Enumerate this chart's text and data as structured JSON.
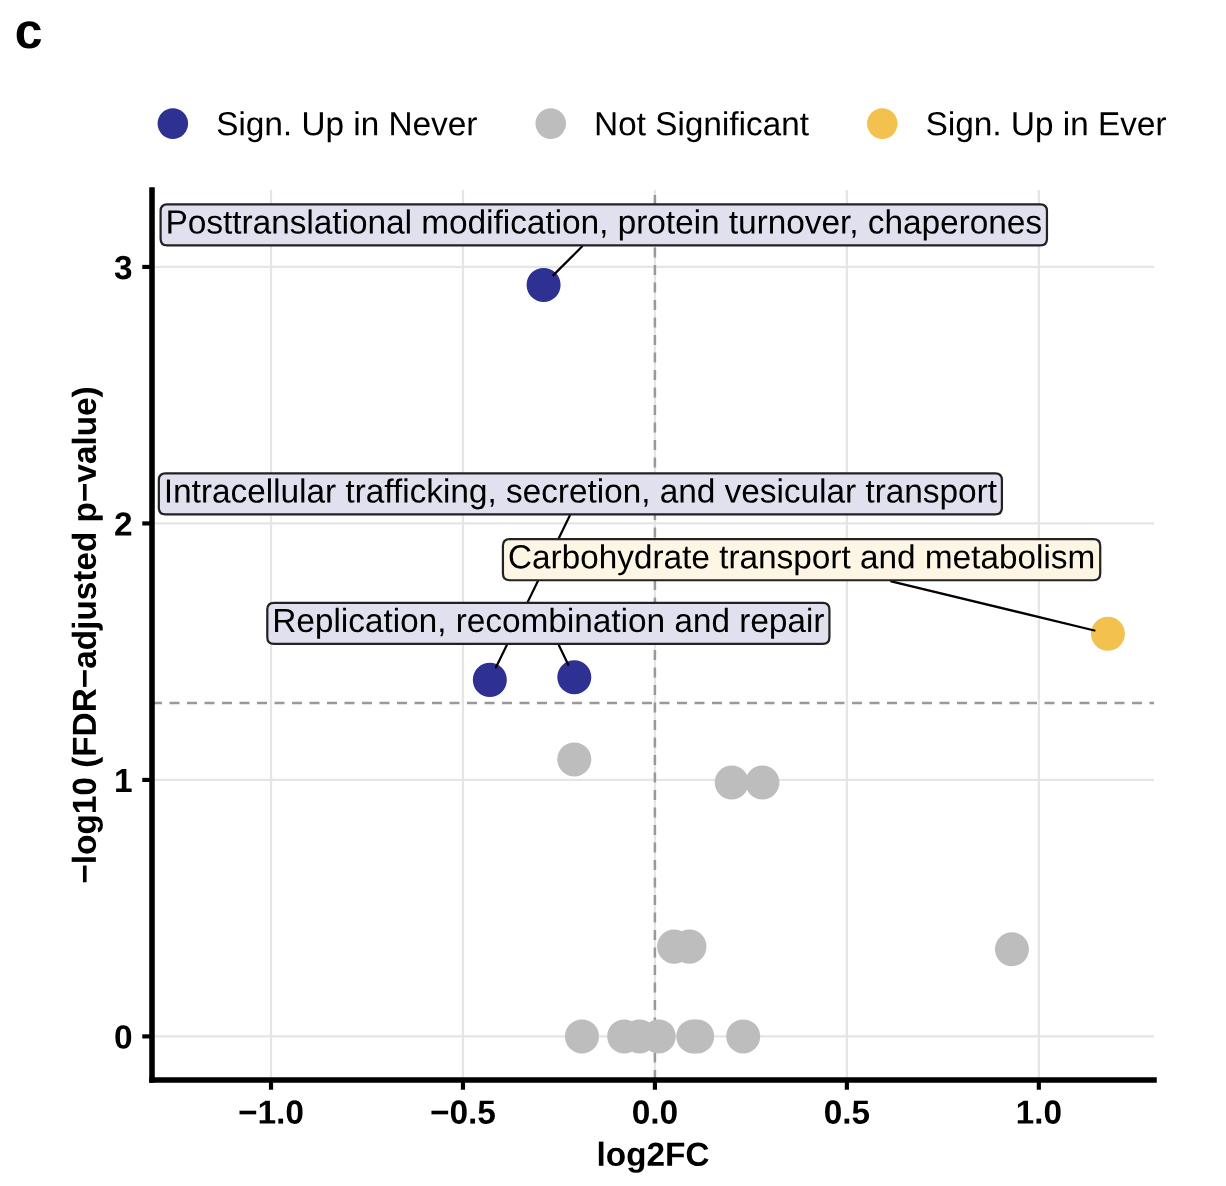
{
  "chart_data": {
    "type": "scatter",
    "xlabel": "log2FC",
    "ylabel": "−log10 (FDR−adjusted p−value)",
    "series": [
      {
        "name": "Sign. Up in Never",
        "color": "#2e3192",
        "x": [
          -0.29,
          -0.43,
          -0.21
        ],
        "values": [
          2.93,
          1.39,
          1.4
        ]
      },
      {
        "name": "Not Significant",
        "color": "#bdbdbd",
        "x": [
          -0.21,
          0.2,
          0.28,
          0.05,
          0.09,
          0.93,
          -0.19,
          -0.08,
          -0.04,
          0.01,
          0.1,
          0.11,
          0.23
        ],
        "values": [
          1.08,
          0.99,
          0.99,
          0.35,
          0.35,
          0.34,
          0,
          0,
          0,
          0,
          0,
          0,
          0
        ]
      },
      {
        "name": "Sign. Up in Ever",
        "color": "#f2c14e",
        "x": [
          1.18
        ],
        "values": [
          1.57
        ]
      }
    ],
    "xlim": [
      -1.31,
      1.3
    ],
    "ylim": [
      -0.17,
      3.3
    ],
    "xticks": [
      {
        "value": -1.0,
        "label": "−1.0"
      },
      {
        "value": -0.5,
        "label": "−0.5"
      },
      {
        "value": 0.0,
        "label": "0.0"
      },
      {
        "value": 0.5,
        "label": "0.5"
      },
      {
        "value": 1.0,
        "label": "1.0"
      }
    ],
    "yticks": [
      0,
      1,
      2,
      3
    ],
    "grid": true,
    "legend": "top",
    "marker": "circle",
    "ref_lines": [
      {
        "axis": "x",
        "value": 0,
        "line_style": "dashed",
        "color": "#999999"
      },
      {
        "axis": "y",
        "value": 1.3,
        "line_style": "dashed",
        "color": "#999999"
      }
    ],
    "annotations": [
      "c",
      {
        "text": "Posttranslational modification, protein turnover, chaperones",
        "x": -0.29,
        "y": 2.93
      },
      {
        "text": "Intracellular trafficking, secretion, and vesicular transport",
        "x": -0.43,
        "y": 1.39
      },
      {
        "text": "Carbohydrate transport and metabolism",
        "x": 1.18,
        "y": 1.57
      },
      {
        "text": "Replication, recombination and repair",
        "x": -0.21,
        "y": 1.4
      }
    ]
  }
}
